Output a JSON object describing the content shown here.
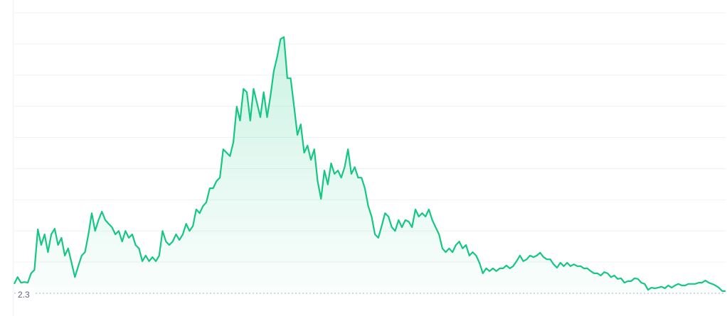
{
  "chart_data": {
    "type": "area",
    "color": "#16c784",
    "ylim": [
      2.3,
      11.3
    ],
    "yticks": [
      2.3
    ],
    "values": [
      2.6,
      2.82,
      2.64,
      2.66,
      2.64,
      2.94,
      3.05,
      4.35,
      3.85,
      4.19,
      3.62,
      4.19,
      4.37,
      3.85,
      4.08,
      3.51,
      3.74,
      3.28,
      2.82,
      3.17,
      3.51,
      3.62,
      4.19,
      4.87,
      4.3,
      4.65,
      4.92,
      4.65,
      4.53,
      4.42,
      4.19,
      4.3,
      3.96,
      4.3,
      4.08,
      4.19,
      3.85,
      3.74,
      3.33,
      3.51,
      3.33,
      3.46,
      3.33,
      3.51,
      4.3,
      3.96,
      3.85,
      3.96,
      4.19,
      4.01,
      4.19,
      4.53,
      4.3,
      4.46,
      4.99,
      4.87,
      5.1,
      5.22,
      5.67,
      5.67,
      5.9,
      6.01,
      6.92,
      6.81,
      6.7,
      7.15,
      8.29,
      7.84,
      8.86,
      8.75,
      7.84,
      8.86,
      8.41,
      7.95,
      8.75,
      7.95,
      8.63,
      9.43,
      9.89,
      10.46,
      10.52,
      9.2,
      9.2,
      8.29,
      7.38,
      7.72,
      6.81,
      7.04,
      6.58,
      6.92,
      5.9,
      5.33,
      6.24,
      5.79,
      6.47,
      6.13,
      6.24,
      6.01,
      6.35,
      6.92,
      6.13,
      6.35,
      6.01,
      6.01,
      5.67,
      5.1,
      4.76,
      4.19,
      4.08,
      4.46,
      4.87,
      4.76,
      4.42,
      4.3,
      4.65,
      4.42,
      4.65,
      4.6,
      4.42,
      4.99,
      4.76,
      4.87,
      4.76,
      4.99,
      4.65,
      4.42,
      4.19,
      3.74,
      3.62,
      3.74,
      3.62,
      3.85,
      3.96,
      3.74,
      3.85,
      3.51,
      3.62,
      3.51,
      3.28,
      2.94,
      3.1,
      3.01,
      3.1,
      3.01,
      3.1,
      3.1,
      3.19,
      3.1,
      3.17,
      3.33,
      3.51,
      3.33,
      3.39,
      3.51,
      3.46,
      3.51,
      3.6,
      3.46,
      3.39,
      3.39,
      3.23,
      3.12,
      3.28,
      3.17,
      3.28,
      3.17,
      3.23,
      3.17,
      3.17,
      3.1,
      3.1,
      3.01,
      2.94,
      2.94,
      2.87,
      2.98,
      2.94,
      2.82,
      2.87,
      2.76,
      2.78,
      2.64,
      2.69,
      2.69,
      2.78,
      2.76,
      2.64,
      2.6,
      2.41,
      2.48,
      2.46,
      2.48,
      2.51,
      2.46,
      2.55,
      2.48,
      2.55,
      2.6,
      2.55,
      2.55,
      2.6,
      2.6,
      2.6,
      2.64,
      2.64,
      2.71,
      2.64,
      2.6,
      2.55,
      2.48,
      2.37,
      2.37
    ]
  }
}
